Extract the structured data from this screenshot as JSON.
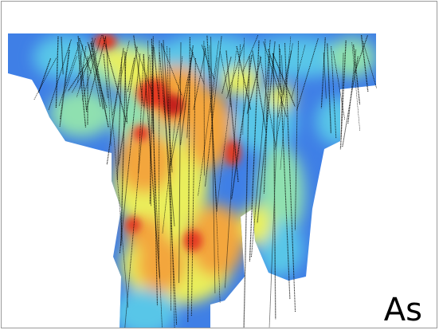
{
  "map": {
    "element_label": "As",
    "palette": {
      "background": "#2b53d6",
      "low": "#3f7fe6",
      "low_mid": "#58c6e8",
      "mid": "#8fe0b0",
      "mid_high": "#e9ef5b",
      "high": "#f3a63c",
      "peak": "#e43a24",
      "max": "#c4201a",
      "drillhole": "#000000"
    }
  }
}
